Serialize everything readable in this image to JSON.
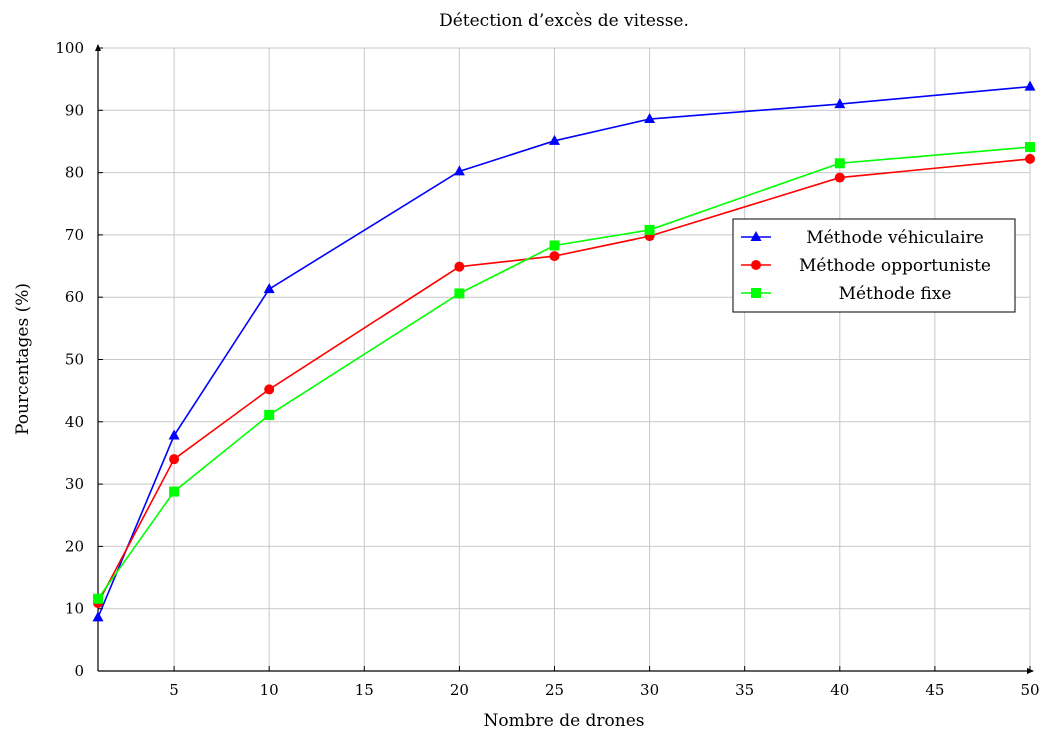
{
  "chart_data": {
    "type": "line",
    "title": "Détection d’excès de vitesse.",
    "xlabel": "Nombre de drones",
    "ylabel": "Pourcentages (%)",
    "xlim": [
      1,
      50
    ],
    "ylim": [
      0,
      100
    ],
    "xticks": [
      5,
      10,
      15,
      20,
      25,
      30,
      35,
      40,
      45,
      50
    ],
    "yticks": [
      0,
      10,
      20,
      30,
      40,
      50,
      60,
      70,
      80,
      90,
      100
    ],
    "grid": true,
    "legend_position": "right",
    "x": [
      1,
      5,
      10,
      20,
      25,
      30,
      40,
      50
    ],
    "series": [
      {
        "name": "Méthode véhiculaire",
        "color": "#0000ff",
        "marker": "triangle",
        "values": [
          8.6,
          37.8,
          61.3,
          80.2,
          85.1,
          88.6,
          91.0,
          93.8
        ]
      },
      {
        "name": "Méthode opportuniste",
        "color": "#ff0000",
        "marker": "circle",
        "values": [
          10.9,
          34.0,
          45.2,
          64.9,
          66.6,
          69.8,
          79.2,
          82.2
        ]
      },
      {
        "name": "Méthode fixe",
        "color": "#00ff00",
        "marker": "square",
        "values": [
          11.6,
          28.8,
          41.1,
          60.6,
          68.3,
          70.8,
          81.5,
          84.1
        ]
      }
    ]
  }
}
